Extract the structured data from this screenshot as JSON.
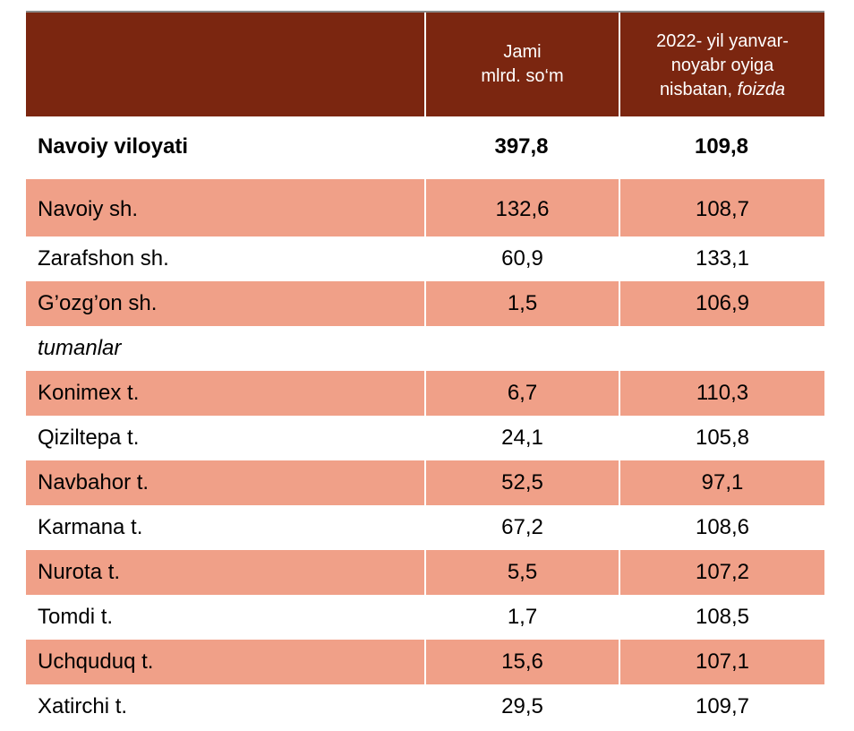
{
  "header": {
    "col2_line1": "Jami",
    "col2_line2": "mlrd. so‘m",
    "col3_line1": "2022- yil yanvar-",
    "col3_line2": "noyabr oyiga",
    "col3_line3_plain": "nisbatan, ",
    "col3_line3_italic": "foizda"
  },
  "total": {
    "name": "Navoiy viloyati",
    "value": "397,8",
    "percent": "109,8"
  },
  "cities": [
    {
      "name": "Navoiy sh.",
      "value": "132,6",
      "percent": "108,7"
    },
    {
      "name": "Zarafshon sh.",
      "value": "60,9",
      "percent": "133,1"
    },
    {
      "name": "G’ozg’on sh.",
      "value": "1,5",
      "percent": "106,9"
    }
  ],
  "section_label": "tumanlar",
  "districts": [
    {
      "name": "Konimex t.",
      "value": "6,7",
      "percent": "110,3"
    },
    {
      "name": "Qiziltepa t.",
      "value": "24,1",
      "percent": "105,8"
    },
    {
      "name": "Navbahor t.",
      "value": "52,5",
      "percent": "97,1"
    },
    {
      "name": "Karmana t.",
      "value": "67,2",
      "percent": "108,6"
    },
    {
      "name": "Nurota t.",
      "value": "5,5",
      "percent": "107,2"
    },
    {
      "name": "Tomdi t.",
      "value": "1,7",
      "percent": "108,5"
    },
    {
      "name": "Uchquduq t.",
      "value": "15,6",
      "percent": "107,1"
    },
    {
      "name": "Xatirchi t.",
      "value": "29,5",
      "percent": "109,7"
    }
  ],
  "colors": {
    "header_bg": "#7b2610",
    "shaded_row": "#f0a088"
  }
}
